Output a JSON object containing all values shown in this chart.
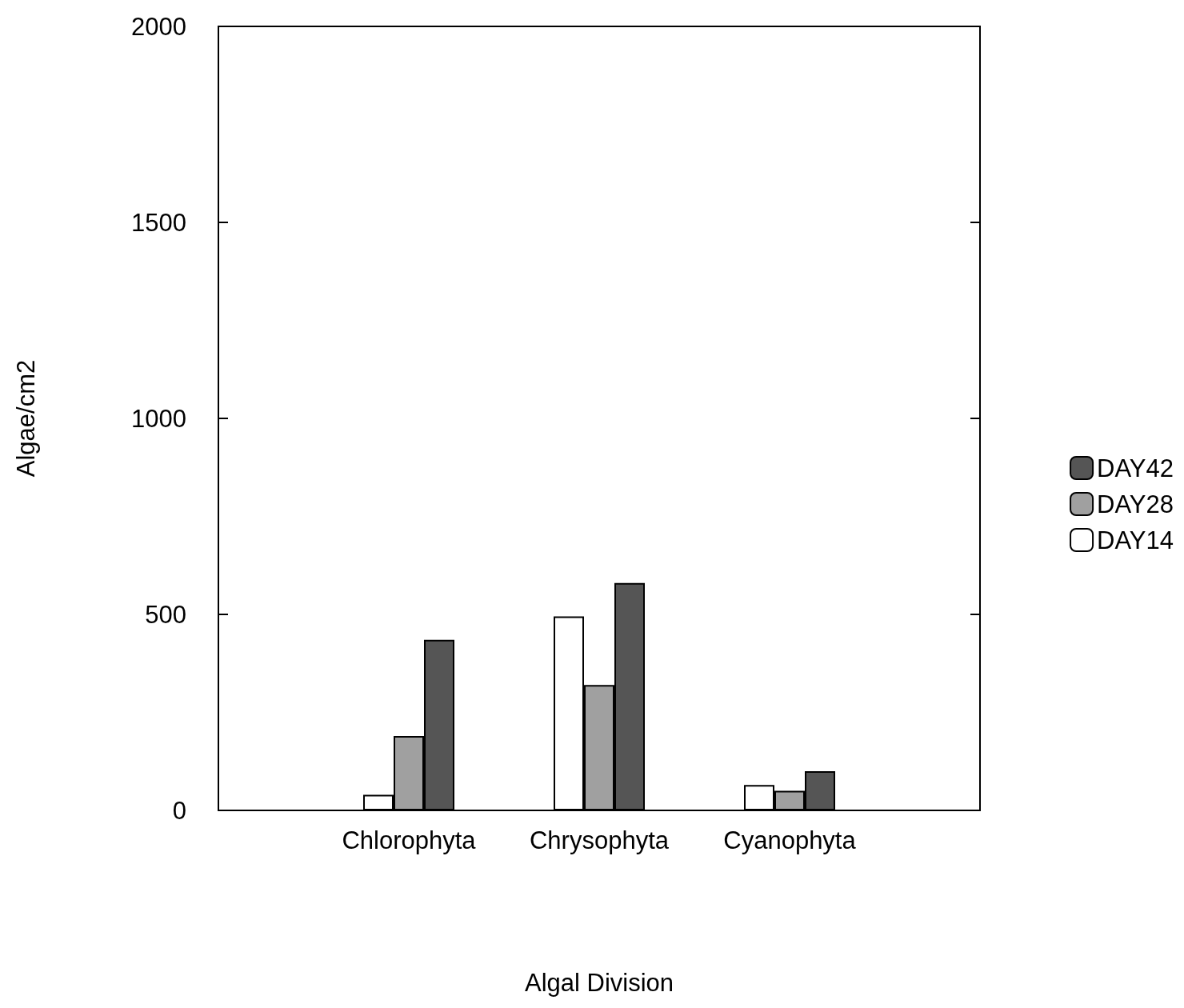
{
  "chart_data": {
    "type": "bar",
    "xlabel": "Algal Division",
    "ylabel": "Algae/cm2",
    "categories": [
      "Chlorophyta",
      "Chrysophyta",
      "Cyanophyta"
    ],
    "series": [
      {
        "name": "DAY14",
        "color": "#ffffff",
        "values": [
          40,
          495,
          65
        ]
      },
      {
        "name": "DAY28",
        "color": "#a0a0a0",
        "values": [
          190,
          320,
          50
        ]
      },
      {
        "name": "DAY42",
        "color": "#555555",
        "values": [
          435,
          580,
          100
        ]
      }
    ],
    "ylim": [
      0,
      2000
    ],
    "yticks": [
      0,
      500,
      1000,
      1500,
      2000
    ],
    "grid": false,
    "legend": "right"
  }
}
